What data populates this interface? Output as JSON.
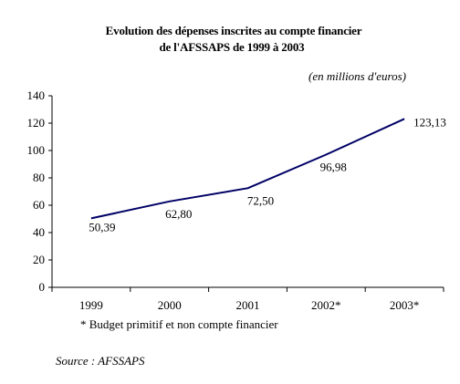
{
  "chart_data": {
    "type": "line",
    "title": "Evolution des dépenses inscrites au compte financier de l'AFSSAPS de 1999 à 2003",
    "title_lines": [
      "Evolution des dépenses inscrites au compte financier",
      "de l'AFSSAPS de 1999 à 2003"
    ],
    "unit_note": "(en millions d'euros)",
    "categories": [
      "1999",
      "2000",
      "2001",
      "2002*",
      "2003*"
    ],
    "series": [
      {
        "values": [
          50.39,
          62.8,
          72.5,
          96.98,
          123.13
        ],
        "data_labels": [
          "50,39",
          "62,80",
          "72,50",
          "96,98",
          "123,13"
        ],
        "color": "#000066"
      }
    ],
    "ylim": [
      0,
      140
    ],
    "yticks": [
      "0",
      "20",
      "40",
      "60",
      "80",
      "100",
      "120",
      "140"
    ],
    "grid": false,
    "legend": "none",
    "footnote": "* Budget primitif et non compte financier",
    "source": "Source : AFSSAPS"
  }
}
